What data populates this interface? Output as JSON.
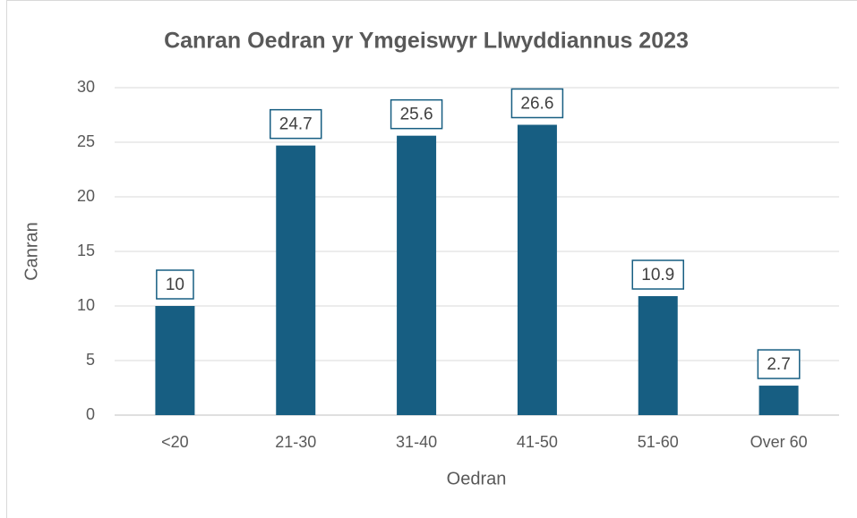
{
  "chart_data": {
    "type": "bar",
    "title": "Canran Oedran yr Ymgeiswyr Llwyddiannus 2023",
    "x_label": "Oedran",
    "y_label": "Canran",
    "categories": [
      "<20",
      "21-30",
      "31-40",
      "41-50",
      "51-60",
      "Over 60"
    ],
    "values": [
      10,
      24.7,
      25.6,
      26.6,
      10.9,
      2.7
    ],
    "color": "#175e82",
    "ylim": [
      0,
      30
    ],
    "yticks": [
      0,
      5,
      10,
      15,
      20,
      25,
      30
    ],
    "grid": true
  }
}
